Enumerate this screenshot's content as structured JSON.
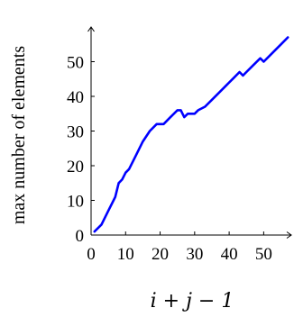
{
  "chart_data": {
    "type": "line",
    "title": "",
    "xlabel": "i + j − 1",
    "ylabel": "max number of elements",
    "xlim": [
      0,
      58
    ],
    "ylim": [
      0,
      60
    ],
    "x_ticks": [
      0,
      10,
      20,
      30,
      40,
      50
    ],
    "y_ticks": [
      0,
      10,
      20,
      30,
      40,
      50
    ],
    "grid": false,
    "colors": {
      "series": "#0000ff",
      "axes": "#000000"
    },
    "series": [
      {
        "x": [
          1,
          3,
          5,
          7,
          8,
          9,
          10,
          11,
          13,
          15,
          17,
          19,
          21,
          23,
          25,
          26,
          27,
          28,
          30,
          31,
          33,
          35,
          37,
          39,
          41,
          43,
          44,
          45,
          47,
          49,
          50,
          51,
          53,
          55,
          57
        ],
        "y": [
          1,
          3,
          7,
          11,
          15,
          16,
          18,
          19,
          23,
          27,
          30,
          32,
          32,
          34,
          36,
          36,
          34,
          35,
          35,
          36,
          37,
          39,
          41,
          43,
          45,
          47,
          46,
          47,
          49,
          51,
          50,
          51,
          53,
          55,
          57
        ]
      }
    ]
  }
}
